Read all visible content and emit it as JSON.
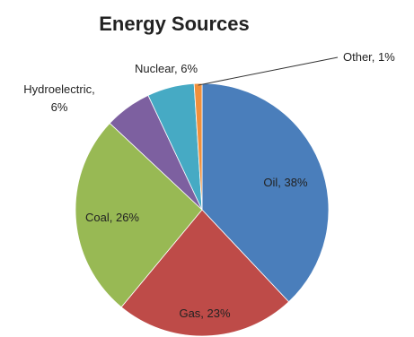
{
  "chart_data": {
    "type": "pie",
    "title": "Energy Sources",
    "slices": [
      {
        "name": "Oil",
        "value": 38,
        "label": "Oil, 38%",
        "color": "#4a7ebb"
      },
      {
        "name": "Gas",
        "value": 23,
        "label": "Gas, 23%",
        "color": "#be4b48"
      },
      {
        "name": "Coal",
        "value": 26,
        "label": "Coal, 26%",
        "color": "#98b954"
      },
      {
        "name": "Hydroelectric",
        "value": 6,
        "label": [
          "Hydroelectric,",
          "6%"
        ],
        "color": "#7d60a0"
      },
      {
        "name": "Nuclear",
        "value": 6,
        "label": "Nuclear, 6%",
        "color": "#46aac4"
      },
      {
        "name": "Other",
        "value": 1,
        "label": "Other, 1%",
        "color": "#f0903c"
      }
    ]
  }
}
